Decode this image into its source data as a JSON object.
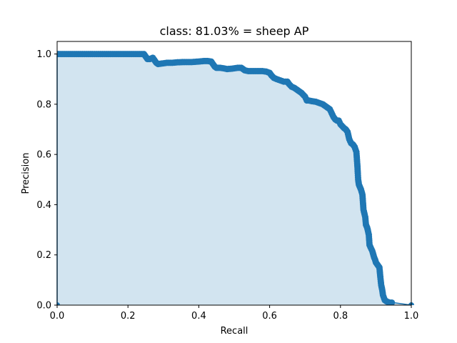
{
  "chart_data": {
    "type": "area",
    "title": "class: 81.03% = sheep AP",
    "xlabel": "Recall",
    "ylabel": "Precision",
    "xlim": [
      0,
      1
    ],
    "ylim": [
      0,
      1.05
    ],
    "grid": false,
    "x_ticks": [
      "0.0",
      "0.2",
      "0.4",
      "0.6",
      "0.8",
      "1.0"
    ],
    "y_ticks": [
      "0.0",
      "0.2",
      "0.4",
      "0.6",
      "0.8",
      "1.0"
    ],
    "series": [
      {
        "color": "#1f77b4",
        "fill_color": "#1f77b4",
        "x": [
          0.0,
          0.0,
          0.005,
          0.05,
          0.1,
          0.15,
          0.2,
          0.245,
          0.25,
          0.255,
          0.262,
          0.27,
          0.275,
          0.28,
          0.285,
          0.295,
          0.31,
          0.325,
          0.34,
          0.36,
          0.38,
          0.4,
          0.415,
          0.425,
          0.435,
          0.44,
          0.445,
          0.45,
          0.46,
          0.47,
          0.48,
          0.495,
          0.51,
          0.52,
          0.525,
          0.53,
          0.54,
          0.56,
          0.58,
          0.59,
          0.6,
          0.605,
          0.612,
          0.62,
          0.63,
          0.64,
          0.65,
          0.655,
          0.662,
          0.67,
          0.68,
          0.69,
          0.7,
          0.705,
          0.71,
          0.72,
          0.73,
          0.74,
          0.75,
          0.76,
          0.77,
          0.775,
          0.78,
          0.785,
          0.79,
          0.795,
          0.8,
          0.81,
          0.815,
          0.82,
          0.825,
          0.83,
          0.835,
          0.84,
          0.845,
          0.848,
          0.85,
          0.852,
          0.855,
          0.858,
          0.862,
          0.865,
          0.87,
          0.872,
          0.875,
          0.877,
          0.88,
          0.882,
          0.885,
          0.89,
          0.893,
          0.895,
          0.898,
          0.9,
          0.905,
          0.91,
          0.912,
          0.915,
          0.918,
          0.92,
          0.925,
          0.93,
          0.935,
          0.94,
          0.95,
          1.0
        ],
        "y": [
          0.0,
          1.0,
          1.0,
          1.0,
          1.0,
          1.0,
          1.0,
          1.0,
          0.99,
          0.98,
          0.98,
          0.985,
          0.975,
          0.965,
          0.96,
          0.962,
          0.965,
          0.965,
          0.967,
          0.968,
          0.968,
          0.97,
          0.972,
          0.972,
          0.97,
          0.96,
          0.95,
          0.945,
          0.945,
          0.943,
          0.94,
          0.942,
          0.945,
          0.945,
          0.94,
          0.935,
          0.932,
          0.932,
          0.932,
          0.93,
          0.925,
          0.915,
          0.905,
          0.9,
          0.895,
          0.89,
          0.89,
          0.88,
          0.87,
          0.865,
          0.855,
          0.845,
          0.83,
          0.815,
          0.815,
          0.812,
          0.81,
          0.805,
          0.8,
          0.79,
          0.78,
          0.765,
          0.75,
          0.74,
          0.735,
          0.735,
          0.72,
          0.705,
          0.7,
          0.69,
          0.66,
          0.645,
          0.64,
          0.63,
          0.61,
          0.55,
          0.5,
          0.48,
          0.47,
          0.46,
          0.44,
          0.38,
          0.35,
          0.32,
          0.31,
          0.3,
          0.28,
          0.24,
          0.23,
          0.215,
          0.2,
          0.19,
          0.18,
          0.17,
          0.16,
          0.15,
          0.12,
          0.08,
          0.06,
          0.04,
          0.02,
          0.015,
          0.012,
          0.01,
          0.01,
          0.0
        ]
      }
    ]
  }
}
